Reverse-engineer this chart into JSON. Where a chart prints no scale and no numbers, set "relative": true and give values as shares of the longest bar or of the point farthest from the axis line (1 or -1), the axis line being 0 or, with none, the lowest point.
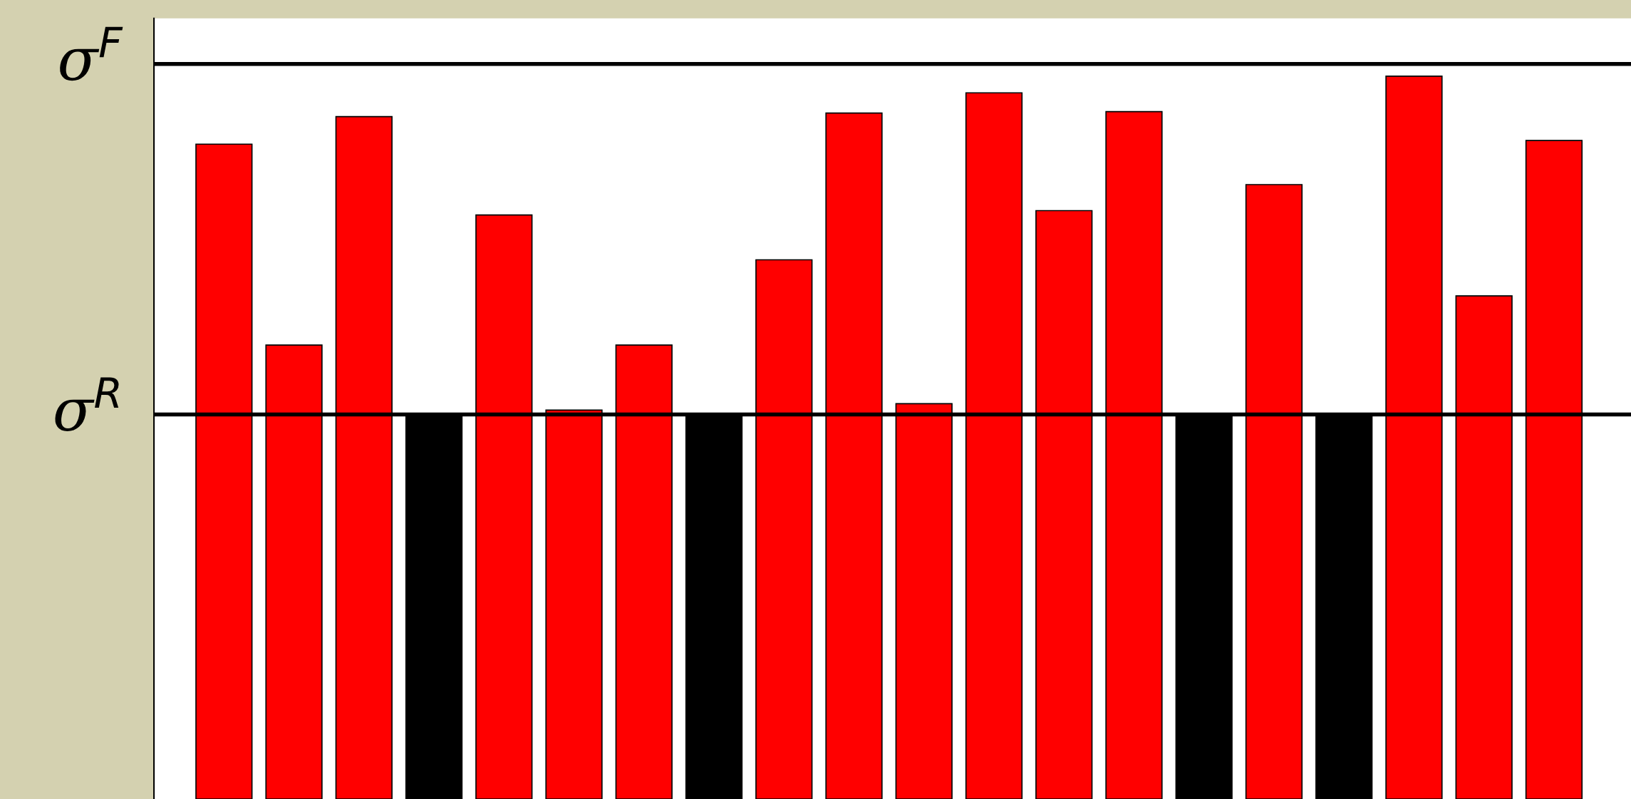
{
  "chart_data": {
    "type": "bar",
    "relative": true,
    "categories": [
      null,
      null,
      null,
      null,
      null,
      null,
      null,
      null,
      null,
      null,
      null,
      null,
      null,
      null,
      null,
      null,
      null,
      null,
      null,
      null
    ],
    "values": [
      0.906,
      0.628,
      0.944,
      0.532,
      0.808,
      0.538,
      0.628,
      0.532,
      0.746,
      0.949,
      0.547,
      0.977,
      0.814,
      0.951,
      0.532,
      0.85,
      0.532,
      1.0,
      0.696,
      0.911
    ],
    "colors": [
      "#ff0000",
      "#ff0000",
      "#ff0000",
      "#000000",
      "#ff0000",
      "#ff0000",
      "#ff0000",
      "#000000",
      "#ff0000",
      "#ff0000",
      "#ff0000",
      "#ff0000",
      "#ff0000",
      "#ff0000",
      "#000000",
      "#ff0000",
      "#000000",
      "#ff0000",
      "#ff0000",
      "#ff0000"
    ],
    "ref_lines": [
      {
        "axis": "y",
        "value": 0.532,
        "label": "σ$^{R}$",
        "color": "#000000"
      },
      {
        "axis": "y",
        "value": 1.017,
        "label": "σ$^{F}$",
        "color": "#000000"
      }
    ]
  }
}
